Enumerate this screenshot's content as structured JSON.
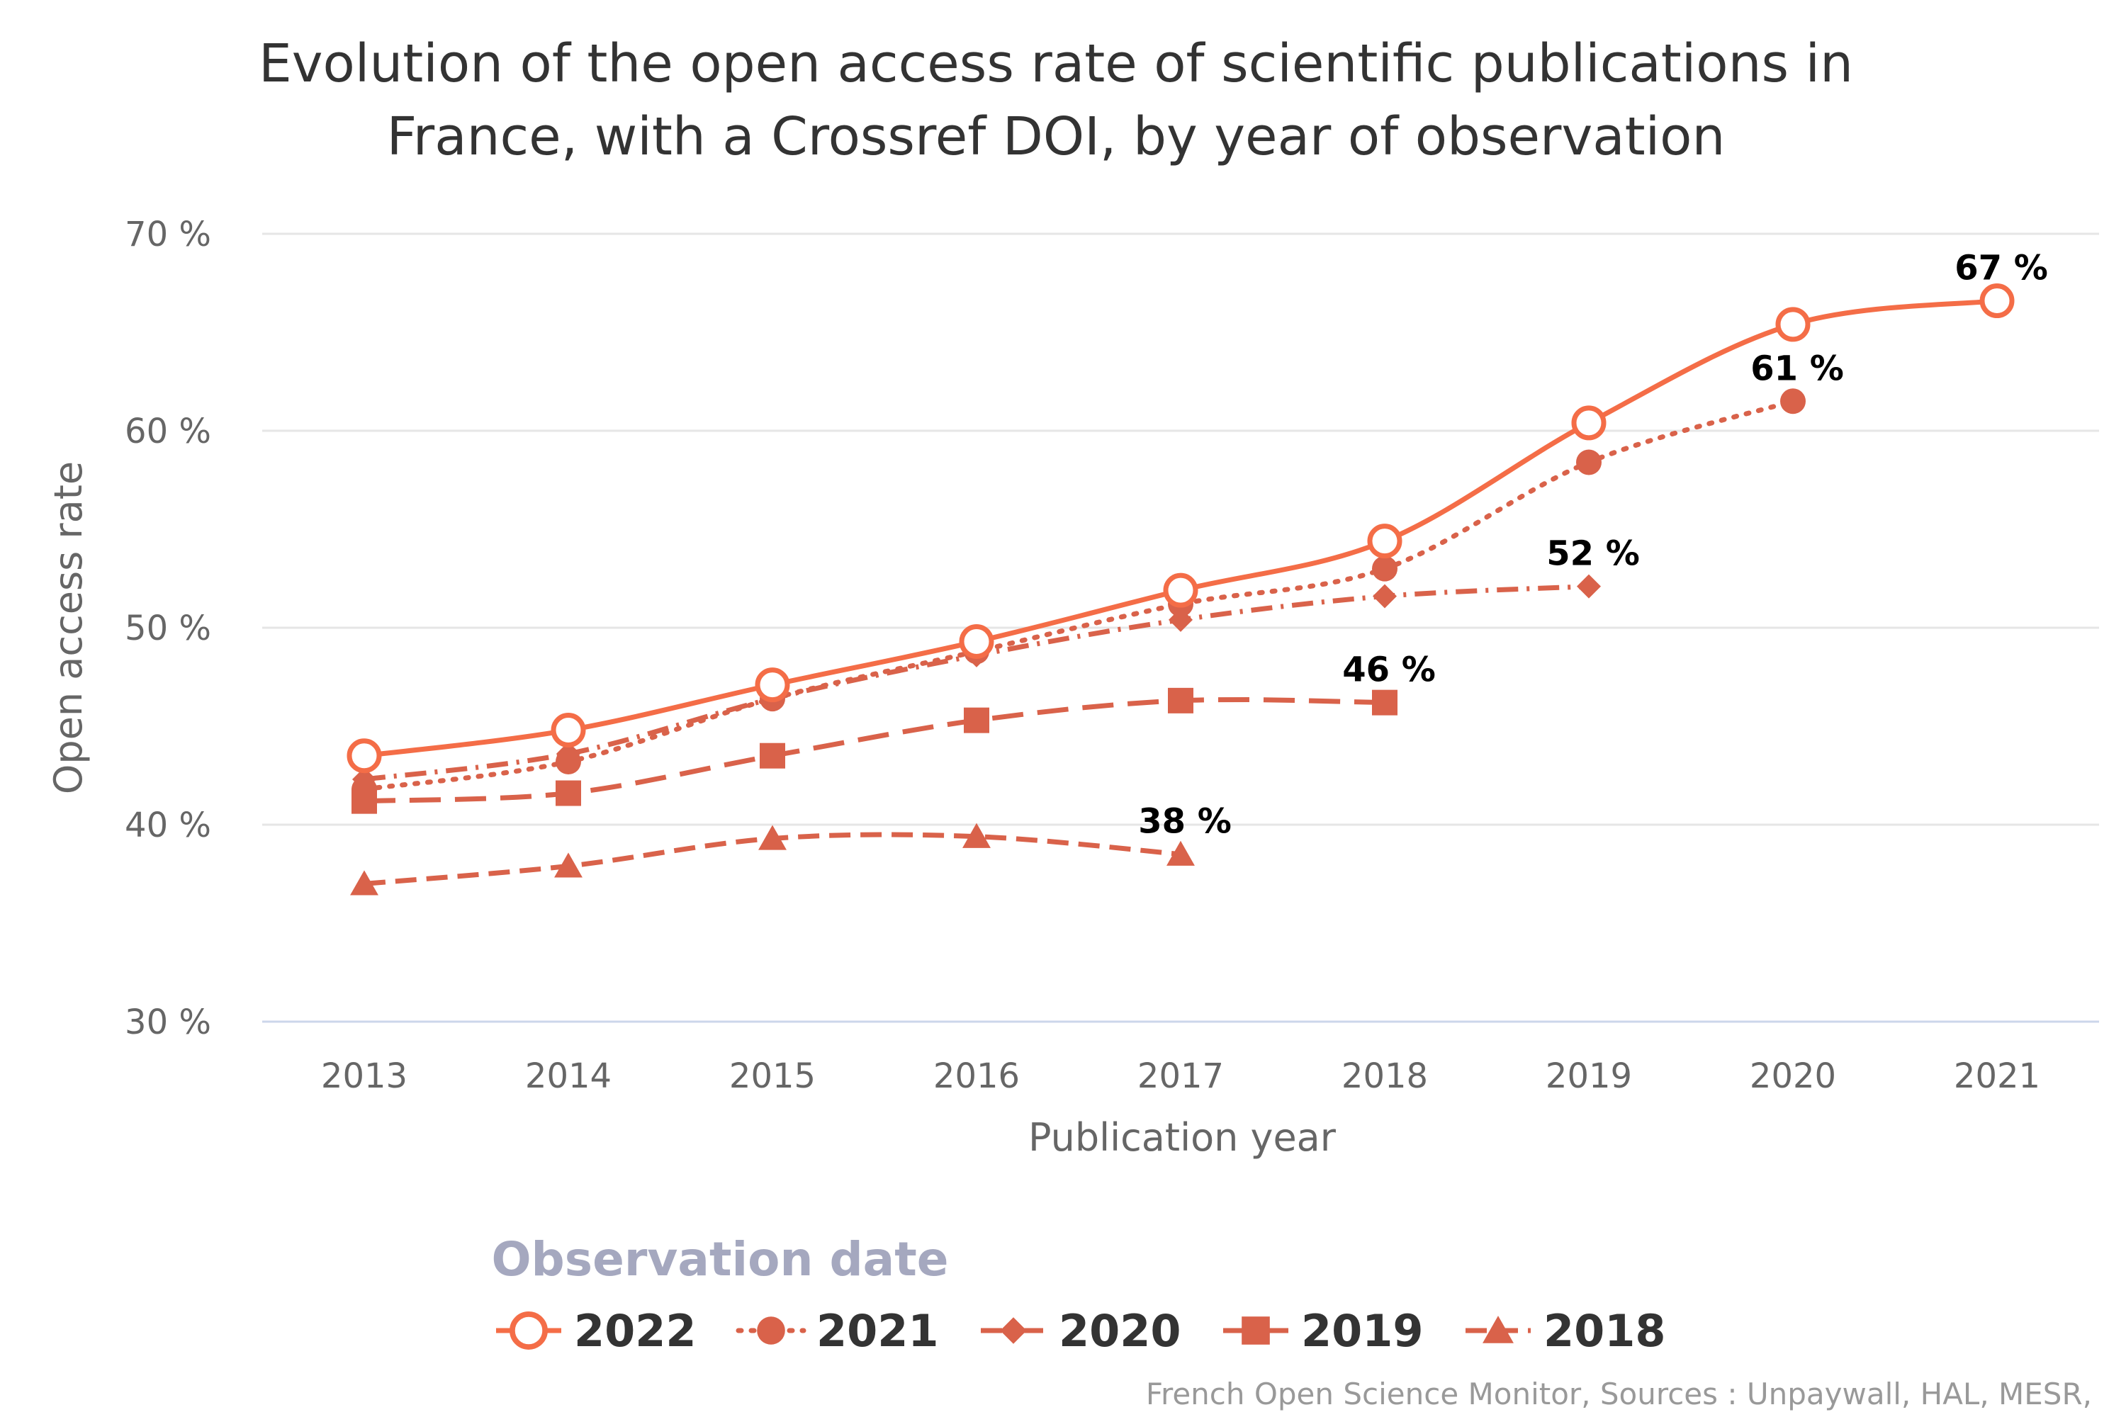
{
  "chart_data": {
    "type": "line",
    "title_lines": [
      "Evolution of the open access rate of scientific publications in",
      "France, with a Crossref DOI, by year of observation"
    ],
    "xlabel": "Publication year",
    "ylabel": "Open access rate",
    "x": [
      "2013",
      "2014",
      "2015",
      "2016",
      "2017",
      "2018",
      "2019",
      "2020",
      "2021"
    ],
    "ylim": [
      30,
      70
    ],
    "y_ticks": [
      30,
      40,
      50,
      60,
      70
    ],
    "y_tick_suffix": " %",
    "legend_title": "Observation date",
    "legend_position": "bottom-center",
    "grid": true,
    "credits": "French Open Science Monitor, Sources : Unpaywall, HAL, MESR,",
    "series": [
      {
        "name": "2022",
        "color": "#f46d47",
        "dash": "solid",
        "marker": "circle-open",
        "values": [
          43.5,
          44.8,
          47.1,
          49.3,
          51.9,
          54.4,
          60.4,
          65.4,
          66.6
        ],
        "end_label": "67 %"
      },
      {
        "name": "2021",
        "color": "#d9624a",
        "dash": "dot",
        "marker": "circle",
        "values": [
          41.8,
          43.2,
          46.4,
          48.8,
          51.2,
          53.0,
          58.4,
          61.5,
          null
        ],
        "end_label": "61 %"
      },
      {
        "name": "2020",
        "color": "#d9624a",
        "dash": "dashdot",
        "marker": "diamond",
        "values": [
          42.3,
          43.6,
          46.4,
          48.6,
          50.4,
          51.6,
          52.1,
          null,
          null
        ],
        "end_label": "52 %"
      },
      {
        "name": "2019",
        "color": "#d9624a",
        "dash": "longdash",
        "marker": "square",
        "values": [
          41.2,
          41.6,
          43.5,
          45.3,
          46.3,
          46.2,
          null,
          null,
          null
        ],
        "end_label": "46 %"
      },
      {
        "name": "2018",
        "color": "#d9624a",
        "dash": "dash",
        "marker": "triangle",
        "values": [
          37.0,
          37.9,
          39.3,
          39.4,
          38.5,
          null,
          null,
          null,
          null
        ],
        "end_label": "38 %"
      }
    ]
  }
}
